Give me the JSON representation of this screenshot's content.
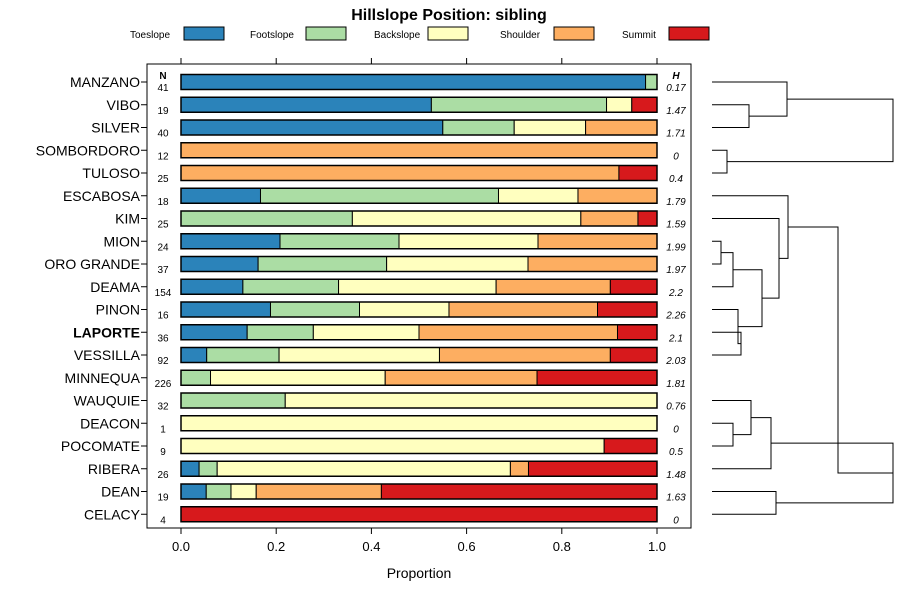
{
  "chart_data": {
    "type": "bar",
    "orientation": "horizontal",
    "stacked": true,
    "title": "Hillslope Position: sibling",
    "xlabel": "Proportion",
    "xlim": [
      0,
      1
    ],
    "x_ticks": [
      "0.0",
      "0.2",
      "0.4",
      "0.6",
      "0.8",
      "1.0"
    ],
    "n_header": "N",
    "h_header": "H",
    "highlight": "LAPORTE",
    "legend": [
      {
        "name": "Toeslope",
        "color": "#2B83BA"
      },
      {
        "name": "Footslope",
        "color": "#ABDDA4"
      },
      {
        "name": "Backslope",
        "color": "#FFFFBF"
      },
      {
        "name": "Shoulder",
        "color": "#FDAE61"
      },
      {
        "name": "Summit",
        "color": "#D7191C"
      }
    ],
    "rows": [
      {
        "label": "MANZANO",
        "n": "41",
        "h": "0.17",
        "values": [
          0.976,
          0.024,
          0,
          0,
          0
        ]
      },
      {
        "label": "VIBO",
        "n": "19",
        "h": "1.47",
        "values": [
          0.526,
          0.368,
          0.053,
          0,
          0.053
        ]
      },
      {
        "label": "SILVER",
        "n": "40",
        "h": "1.71",
        "values": [
          0.55,
          0.15,
          0.15,
          0.15,
          0
        ]
      },
      {
        "label": "SOMBORDORO",
        "n": "12",
        "h": "0",
        "values": [
          0,
          0,
          0,
          1.0,
          0
        ]
      },
      {
        "label": "TULOSO",
        "n": "25",
        "h": "0.4",
        "values": [
          0,
          0,
          0,
          0.92,
          0.08
        ]
      },
      {
        "label": "ESCABOSA",
        "n": "18",
        "h": "1.79",
        "values": [
          0.167,
          0.5,
          0.167,
          0.166,
          0
        ]
      },
      {
        "label": "KIM",
        "n": "25",
        "h": "1.59",
        "values": [
          0,
          0.36,
          0.48,
          0.12,
          0.04
        ]
      },
      {
        "label": "MION",
        "n": "24",
        "h": "1.99",
        "values": [
          0.208,
          0.25,
          0.292,
          0.25,
          0
        ]
      },
      {
        "label": "ORO GRANDE",
        "n": "37",
        "h": "1.97",
        "values": [
          0.162,
          0.27,
          0.297,
          0.271,
          0
        ]
      },
      {
        "label": "DEAMA",
        "n": "154",
        "h": "2.2",
        "values": [
          0.13,
          0.201,
          0.331,
          0.24,
          0.098
        ]
      },
      {
        "label": "PINON",
        "n": "16",
        "h": "2.26",
        "values": [
          0.188,
          0.187,
          0.188,
          0.312,
          0.125
        ]
      },
      {
        "label": "LAPORTE",
        "n": "36",
        "h": "2.1",
        "values": [
          0.139,
          0.139,
          0.222,
          0.417,
          0.083
        ]
      },
      {
        "label": "VESSILLA",
        "n": "92",
        "h": "2.03",
        "values": [
          0.054,
          0.152,
          0.337,
          0.359,
          0.098
        ]
      },
      {
        "label": "MINNEQUA",
        "n": "226",
        "h": "1.81",
        "values": [
          0,
          0.062,
          0.367,
          0.319,
          0.252
        ]
      },
      {
        "label": "WAUQUIE",
        "n": "32",
        "h": "0.76",
        "values": [
          0,
          0.219,
          0.781,
          0,
          0
        ]
      },
      {
        "label": "DEACON",
        "n": "1",
        "h": "0",
        "values": [
          0,
          0,
          1.0,
          0,
          0
        ]
      },
      {
        "label": "POCOMATE",
        "n": "9",
        "h": "0.5",
        "values": [
          0,
          0,
          0.889,
          0,
          0.111
        ]
      },
      {
        "label": "RIBERA",
        "n": "26",
        "h": "1.48",
        "values": [
          0.038,
          0.038,
          0.616,
          0.038,
          0.27
        ]
      },
      {
        "label": "DEAN",
        "n": "19",
        "h": "1.63",
        "values": [
          0.053,
          0.052,
          0.053,
          0.263,
          0.579
        ]
      },
      {
        "label": "CELACY",
        "n": "4",
        "h": "0",
        "values": [
          0,
          0,
          0,
          0,
          1.0
        ]
      }
    ],
    "dendrogram": {
      "type": "hierarchical-clustering",
      "leaf_order": [
        "MANZANO",
        "VIBO",
        "SILVER",
        "SOMBORDORO",
        "TULOSO",
        "ESCABOSA",
        "KIM",
        "MION",
        "ORO GRANDE",
        "DEAMA",
        "PINON",
        "LAPORTE",
        "VESSILLA",
        "MINNEQUA",
        "WAUQUIE",
        "DEACON",
        "POCOMATE",
        "RIBERA",
        "DEAN",
        "CELACY"
      ]
    }
  }
}
